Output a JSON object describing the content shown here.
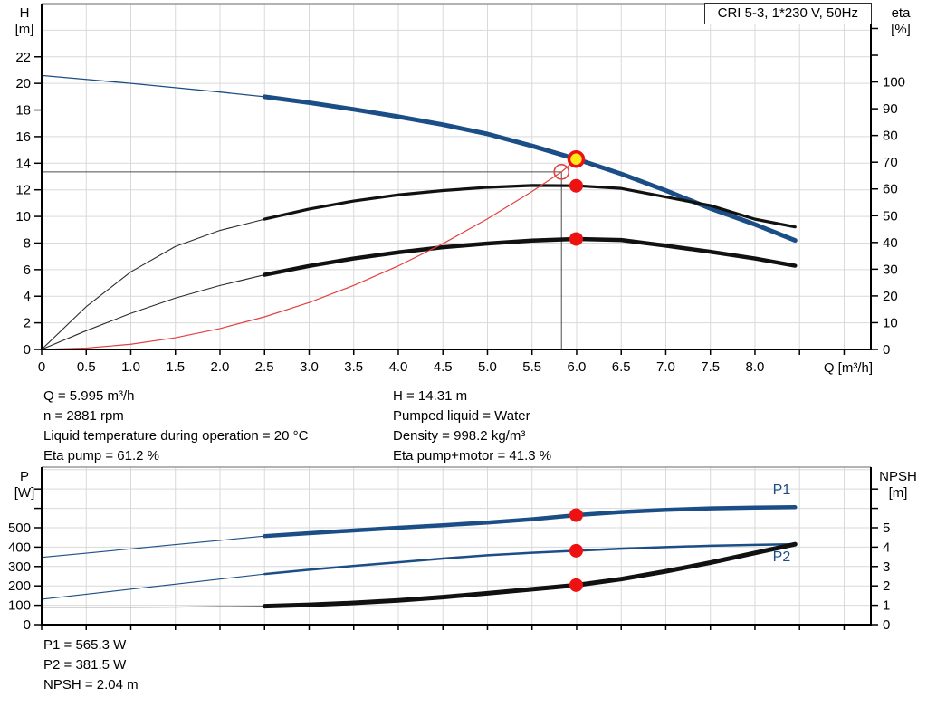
{
  "header": {
    "title": "CRI 5-3, 1*230 V, 50Hz"
  },
  "axes_labels": {
    "top_left_1": "H",
    "top_left_2": "[m]",
    "top_right_1": "eta",
    "top_right_2": "[%]",
    "top_x": "Q [m³/h]",
    "bottom_left_1": "P",
    "bottom_left_2": "[W]",
    "bottom_right_1": "NPSH",
    "bottom_right_2": "[m]"
  },
  "info_top": {
    "left": [
      "Q = 5.995 m³/h",
      "n = 2881 rpm",
      "Liquid temperature during operation = 20 °C",
      "Eta pump = 61.2 %"
    ],
    "right": [
      "H = 14.31 m",
      "Pumped liquid = Water",
      "Density = 998.2 kg/m³",
      "Eta pump+motor = 41.3 %"
    ]
  },
  "info_bottom": [
    "P1 = 565.3 W",
    "P2 = 381.5 W",
    "NPSH = 2.04 m"
  ],
  "colors": {
    "curve_blue": "#1b4e86",
    "curve_black": "#111111",
    "curve_red": "#e34040",
    "marker_red": "#ee1111",
    "marker_yellow": "#ffe81a",
    "grid": "#d9d9d9",
    "axis": "#000000",
    "top_border": "#9a9a9a",
    "crosshair": "#4d4d4d"
  },
  "chart_data": [
    {
      "type": "line",
      "name": "qh-eta-chart",
      "title": "CRI 5-3, 1*230 V, 50Hz",
      "xlabel": "Q [m³/h]",
      "ylabel_left": "H [m]",
      "ylabel_right": "eta [%]",
      "xlim": [
        0,
        9.3
      ],
      "x_grid_step": 0.5,
      "x_ticks": [
        {
          "v": 0,
          "label": "0"
        },
        {
          "v": 0.5,
          "label": "0.5"
        },
        {
          "v": 1,
          "label": "1.0"
        },
        {
          "v": 1.5,
          "label": "1.5"
        },
        {
          "v": 2,
          "label": "2.0"
        },
        {
          "v": 2.5,
          "label": "2.5"
        },
        {
          "v": 3,
          "label": "3.0"
        },
        {
          "v": 3.5,
          "label": "3.5"
        },
        {
          "v": 4,
          "label": "4.0"
        },
        {
          "v": 4.5,
          "label": "4.5"
        },
        {
          "v": 5,
          "label": "5.0"
        },
        {
          "v": 5.5,
          "label": "5.5"
        },
        {
          "v": 6,
          "label": "6.0"
        },
        {
          "v": 6.5,
          "label": "6.5"
        },
        {
          "v": 7,
          "label": "7.0"
        },
        {
          "v": 7.5,
          "label": "7.5"
        },
        {
          "v": 8,
          "label": "8.0"
        },
        {
          "v": 8.5,
          "label": ""
        },
        {
          "v": 9,
          "label": ""
        }
      ],
      "ylim_left": [
        0,
        26
      ],
      "left_grid_step": 2,
      "left_ticks": [
        {
          "v": 0,
          "label": "0"
        },
        {
          "v": 2,
          "label": "2"
        },
        {
          "v": 4,
          "label": "4"
        },
        {
          "v": 6,
          "label": "6"
        },
        {
          "v": 8,
          "label": "8"
        },
        {
          "v": 10,
          "label": "10"
        },
        {
          "v": 12,
          "label": "12"
        },
        {
          "v": 14,
          "label": "14"
        },
        {
          "v": 16,
          "label": "16"
        },
        {
          "v": 18,
          "label": "18"
        },
        {
          "v": 20,
          "label": "20"
        },
        {
          "v": 22,
          "label": "22"
        }
      ],
      "ylim_right": [
        0,
        129.3
      ],
      "right_ticks": [
        {
          "v": 0,
          "label": "0"
        },
        {
          "v": 10,
          "label": "10"
        },
        {
          "v": 20,
          "label": "20"
        },
        {
          "v": 30,
          "label": "30"
        },
        {
          "v": 40,
          "label": "40"
        },
        {
          "v": 50,
          "label": "50"
        },
        {
          "v": 60,
          "label": "60"
        },
        {
          "v": 70,
          "label": "70"
        },
        {
          "v": 80,
          "label": "80"
        },
        {
          "v": 90,
          "label": "90"
        },
        {
          "v": 100,
          "label": "100"
        },
        {
          "v": 110,
          "label": ""
        },
        {
          "v": 120,
          "label": ""
        }
      ],
      "crosshair": {
        "q": 5.83,
        "h": 13.35
      },
      "series": [
        {
          "name": "qh-curve-thin",
          "axis": "left",
          "color": "#1b4e86",
          "lw": 1.3,
          "x": [
            0,
            0.5,
            1,
            1.5,
            2,
            2.5
          ],
          "y": [
            20.6,
            20.3,
            20.0,
            19.68,
            19.35,
            19.0
          ]
        },
        {
          "name": "qh-curve",
          "axis": "left",
          "color": "#1b4e86",
          "lw": 5,
          "x": [
            2.5,
            3,
            3.5,
            4,
            4.5,
            5,
            5.5,
            6,
            6.5,
            7,
            7.5,
            8,
            8.45
          ],
          "y": [
            19.0,
            18.55,
            18.05,
            17.5,
            16.9,
            16.2,
            15.3,
            14.31,
            13.2,
            11.95,
            10.6,
            9.4,
            8.2
          ]
        },
        {
          "name": "eta-pump-thin",
          "axis": "right",
          "color": "#2b2b2b",
          "lw": 1.1,
          "x": [
            0,
            0.5,
            1,
            1.5,
            2,
            2.5
          ],
          "y": [
            0,
            16,
            29,
            38.5,
            44.5,
            48.7
          ]
        },
        {
          "name": "eta-pump",
          "axis": "right",
          "color": "#111111",
          "lw": 3.2,
          "x": [
            2.5,
            3,
            3.5,
            4,
            4.5,
            5,
            5.5,
            6,
            6.5,
            7,
            7.5,
            8,
            8.45
          ],
          "y": [
            48.7,
            52.5,
            55.5,
            57.8,
            59.4,
            60.6,
            61.3,
            61.2,
            60.2,
            57.0,
            53.8,
            48.7,
            45.8
          ]
        },
        {
          "name": "eta-pump-motor-thin",
          "axis": "right",
          "color": "#2b2b2b",
          "lw": 1.1,
          "x": [
            0,
            0.5,
            1,
            1.5,
            2,
            2.5
          ],
          "y": [
            0,
            7,
            13.5,
            19.2,
            23.9,
            27.9
          ]
        },
        {
          "name": "eta-pump-motor",
          "axis": "right",
          "color": "#111111",
          "lw": 4.5,
          "x": [
            2.5,
            3,
            3.5,
            4,
            4.5,
            5,
            5.5,
            6,
            6.5,
            7,
            7.5,
            8,
            8.45
          ],
          "y": [
            27.9,
            31.2,
            34.0,
            36.3,
            38.2,
            39.6,
            40.7,
            41.3,
            40.9,
            38.8,
            36.5,
            34.0,
            31.3
          ]
        },
        {
          "name": "system-curve",
          "axis": "left",
          "color": "#e34040",
          "lw": 1.2,
          "x": [
            0,
            0.5,
            1,
            1.5,
            2,
            2.5,
            3,
            3.5,
            4,
            4.5,
            5,
            5.5,
            5.83,
            6.0
          ],
          "y": [
            0,
            0.1,
            0.39,
            0.88,
            1.57,
            2.45,
            3.53,
            4.81,
            6.28,
            7.95,
            9.82,
            11.88,
            13.35,
            14.31
          ]
        }
      ],
      "markers": [
        {
          "name": "duty-point-request",
          "kind": "open",
          "axis": "left",
          "q": 5.83,
          "v": 13.35,
          "color": "#e34040"
        },
        {
          "name": "operating-point",
          "kind": "op",
          "axis": "left",
          "q": 5.995,
          "v": 14.31,
          "fill": "#ffe81a",
          "ring": "#ee1111"
        },
        {
          "name": "eta-pump-point",
          "kind": "dot",
          "axis": "right",
          "q": 5.995,
          "v": 61.2,
          "fill": "#ee1111"
        },
        {
          "name": "eta-pump-motor-point",
          "kind": "dot",
          "axis": "right",
          "q": 5.995,
          "v": 41.3,
          "fill": "#ee1111"
        }
      ],
      "annotations": []
    },
    {
      "type": "line",
      "name": "power-npsh-chart",
      "title": "",
      "xlabel": "",
      "ylabel_left": "P [W]",
      "ylabel_right": "NPSH [m]",
      "xlim": [
        0,
        9.3
      ],
      "x_grid_step": 0.5,
      "x_ticks": [
        {
          "v": 0,
          "label": ""
        },
        {
          "v": 0.5,
          "label": ""
        },
        {
          "v": 1,
          "label": ""
        },
        {
          "v": 1.5,
          "label": ""
        },
        {
          "v": 2,
          "label": ""
        },
        {
          "v": 2.5,
          "label": ""
        },
        {
          "v": 3,
          "label": ""
        },
        {
          "v": 3.5,
          "label": ""
        },
        {
          "v": 4,
          "label": ""
        },
        {
          "v": 4.5,
          "label": ""
        },
        {
          "v": 5,
          "label": ""
        },
        {
          "v": 5.5,
          "label": ""
        },
        {
          "v": 6,
          "label": ""
        },
        {
          "v": 6.5,
          "label": ""
        },
        {
          "v": 7,
          "label": ""
        },
        {
          "v": 7.5,
          "label": ""
        },
        {
          "v": 8,
          "label": ""
        },
        {
          "v": 8.5,
          "label": ""
        },
        {
          "v": 9,
          "label": ""
        }
      ],
      "ylim_left": [
        0,
        813
      ],
      "left_grid_step": 100,
      "left_ticks": [
        {
          "v": 0,
          "label": "0"
        },
        {
          "v": 100,
          "label": "100"
        },
        {
          "v": 200,
          "label": "200"
        },
        {
          "v": 300,
          "label": "300"
        },
        {
          "v": 400,
          "label": "400"
        },
        {
          "v": 500,
          "label": "500"
        },
        {
          "v": 600,
          "label": ""
        },
        {
          "v": 700,
          "label": ""
        }
      ],
      "ylim_right": [
        0,
        8.13
      ],
      "right_ticks": [
        {
          "v": 0,
          "label": "0"
        },
        {
          "v": 1,
          "label": "1"
        },
        {
          "v": 2,
          "label": "2"
        },
        {
          "v": 3,
          "label": "3"
        },
        {
          "v": 4,
          "label": "4"
        },
        {
          "v": 5,
          "label": "5"
        },
        {
          "v": 6,
          "label": ""
        },
        {
          "v": 7,
          "label": ""
        }
      ],
      "series": [
        {
          "name": "p1-curve-thin",
          "axis": "left",
          "color": "#1b4e86",
          "lw": 1.1,
          "x": [
            0,
            0.5,
            1,
            1.5,
            2,
            2.5
          ],
          "y": [
            347,
            369,
            391,
            413,
            435,
            457
          ]
        },
        {
          "name": "p1-curve",
          "axis": "left",
          "color": "#1b4e86",
          "lw": 4.5,
          "x": [
            2.5,
            3,
            3.5,
            4,
            4.5,
            5,
            5.5,
            6,
            6.5,
            7,
            7.5,
            8,
            8.45
          ],
          "y": [
            457,
            472,
            486,
            500,
            513,
            527,
            544,
            565.3,
            581,
            592,
            600,
            604,
            606
          ]
        },
        {
          "name": "p2-curve-thin",
          "axis": "left",
          "color": "#1b4e86",
          "lw": 1.1,
          "x": [
            0,
            0.5,
            1,
            1.5,
            2,
            2.5
          ],
          "y": [
            131,
            157,
            183,
            209,
            235,
            261
          ]
        },
        {
          "name": "p2-curve",
          "axis": "left",
          "color": "#1b4e86",
          "lw": 2.5,
          "x": [
            2.5,
            3,
            3.5,
            4,
            4.5,
            5,
            5.5,
            6,
            6.5,
            7,
            7.5,
            8,
            8.45
          ],
          "y": [
            261,
            283,
            303,
            322,
            341,
            358,
            371,
            381.5,
            392,
            400,
            407,
            412,
            415
          ]
        },
        {
          "name": "npsh-curve-thin",
          "axis": "right",
          "color": "#555555",
          "lw": 1.1,
          "x": [
            0,
            0.5,
            1,
            1.5,
            2,
            2.5
          ],
          "y": [
            0.9,
            0.9,
            0.9,
            0.91,
            0.93,
            0.95
          ]
        },
        {
          "name": "npsh-curve",
          "axis": "right",
          "color": "#111111",
          "lw": 5,
          "x": [
            2.5,
            3,
            3.5,
            4,
            4.5,
            5,
            5.5,
            6,
            6.5,
            7,
            7.5,
            8,
            8.45
          ],
          "y": [
            0.95,
            1.02,
            1.12,
            1.25,
            1.42,
            1.62,
            1.83,
            2.04,
            2.35,
            2.75,
            3.2,
            3.7,
            4.15
          ]
        }
      ],
      "markers": [
        {
          "name": "p1-point",
          "kind": "dot",
          "axis": "left",
          "q": 5.995,
          "v": 565.3,
          "fill": "#ee1111"
        },
        {
          "name": "p2-point",
          "kind": "dot",
          "axis": "left",
          "q": 5.995,
          "v": 381.5,
          "fill": "#ee1111"
        },
        {
          "name": "npsh-point",
          "kind": "dot",
          "axis": "right",
          "q": 5.995,
          "v": 2.04,
          "fill": "#ee1111"
        }
      ],
      "annotations": [
        {
          "name": "p1-curve-label",
          "label": "P1",
          "q": 8.2,
          "axis": "left",
          "v": 672,
          "color": "#1b4e86"
        },
        {
          "name": "p2-curve-label",
          "label": "P2",
          "q": 8.2,
          "axis": "left",
          "v": 328,
          "color": "#1b4e86"
        }
      ]
    }
  ]
}
